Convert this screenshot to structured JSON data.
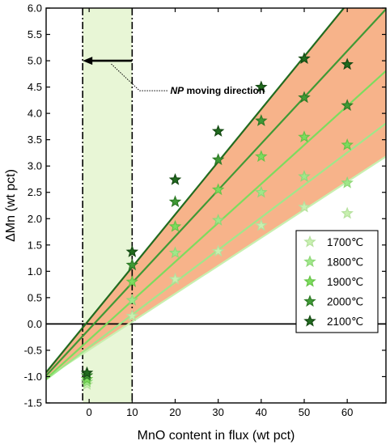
{
  "colors": {
    "band_fill": "#f7b38a",
    "shade_fill": "#e8f6d6",
    "line_1700": "#c8f0b0",
    "line_1800": "#a0e78a",
    "line_1900": "#7ddc5e",
    "line_2000": "#3f9a35",
    "line_2100": "#216b1f",
    "marker_stroke_dark": "#1f5e1d"
  },
  "chart_data": {
    "type": "scatter",
    "xlabel": "MnO content in flux (wt pct)",
    "ylabel": "ΔMn (wt pct)",
    "xlim": [
      -10,
      69
    ],
    "ylim": [
      -1.5,
      6.0
    ],
    "xticks": [
      0,
      10,
      20,
      30,
      40,
      50,
      60
    ],
    "yticks": [
      -1.5,
      -1.0,
      -0.5,
      0.0,
      0.5,
      1.0,
      1.5,
      2.0,
      2.5,
      3.0,
      3.5,
      4.0,
      4.5,
      5.0,
      5.5,
      6.0
    ],
    "ytick_labels": [
      "-1.5",
      "-1.0",
      "-0.5",
      "0.0",
      "0.5",
      "1.0",
      "1.5",
      "2.0",
      "2.5",
      "3.0",
      "3.5",
      "4.0",
      "4.5",
      "5.0",
      "5.5",
      "6.0"
    ],
    "shaded_region": {
      "x": [
        -1.5,
        10
      ]
    },
    "arrow": {
      "from": [
        10,
        5.0
      ],
      "to": [
        -1.5,
        5.0
      ]
    },
    "annotation": {
      "bold": "NP",
      "rest": " moving direction",
      "anchor": [
        -0.5,
        5.0
      ]
    },
    "series": [
      {
        "name": "1700℃",
        "color": "#c8f0b0",
        "stroke": "#b6e19e",
        "x": [
          -0.5,
          10,
          20,
          30,
          40,
          50,
          60
        ],
        "y": [
          -1.15,
          0.15,
          0.85,
          1.38,
          1.87,
          2.22,
          2.1
        ],
        "fit": {
          "slope": 0.0532,
          "intercept": -0.49
        }
      },
      {
        "name": "1800℃",
        "color": "#a0e78a",
        "stroke": "#8fd878",
        "x": [
          -0.5,
          10,
          20,
          30,
          40,
          50,
          60
        ],
        "y": [
          -1.1,
          0.45,
          1.35,
          1.97,
          2.5,
          2.8,
          2.68
        ],
        "fit": {
          "slope": 0.0616,
          "intercept": -0.44
        }
      },
      {
        "name": "1900℃",
        "color": "#7ddc5e",
        "stroke": "#66c447",
        "x": [
          -0.5,
          10,
          20,
          30,
          40,
          50,
          60
        ],
        "y": [
          -1.05,
          0.8,
          1.85,
          2.55,
          3.18,
          3.55,
          3.4
        ],
        "fit": {
          "slope": 0.074,
          "intercept": -0.3
        }
      },
      {
        "name": "2000℃",
        "color": "#3f9a35",
        "stroke": "#2e7a26",
        "x": [
          -0.5,
          10,
          20,
          30,
          40,
          50,
          60
        ],
        "y": [
          -0.98,
          1.12,
          2.32,
          3.12,
          3.86,
          4.3,
          4.15
        ],
        "fit": {
          "slope": 0.0881,
          "intercept": -0.1
        }
      },
      {
        "name": "2100℃",
        "color": "#216b1f",
        "stroke": "#154a13",
        "x": [
          -0.5,
          10,
          20,
          30,
          40,
          50,
          60
        ],
        "y": [
          -0.93,
          1.37,
          2.74,
          3.66,
          4.5,
          5.04,
          4.93
        ],
        "fit": {
          "slope": 0.1,
          "intercept": 0.08
        }
      }
    ],
    "legend_position": "lower-right"
  }
}
